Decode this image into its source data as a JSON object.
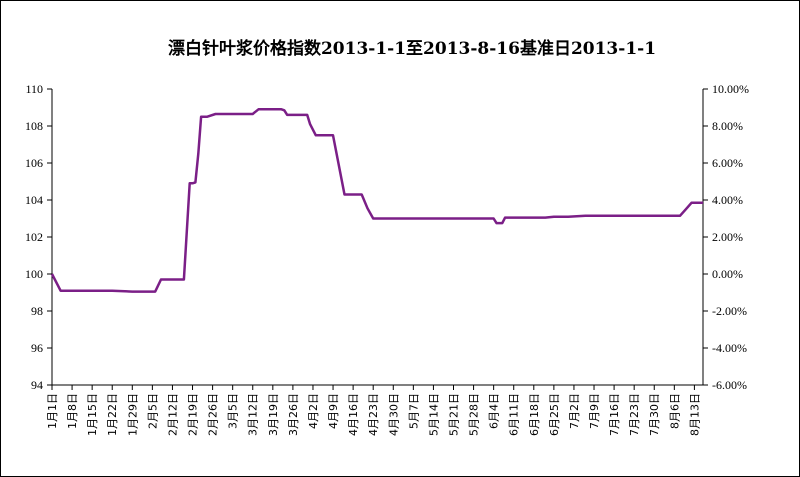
{
  "chart_data": {
    "type": "line",
    "title": "漂白针叶浆价格指数2013-1-1至2013-8-16基准日2013-1-1",
    "xlabel": "",
    "ylabel": "",
    "ylim": [
      94,
      110
    ],
    "y_ticks": [
      "110",
      "108",
      "106",
      "104",
      "102",
      "100",
      "98",
      "96",
      "94"
    ],
    "y2lim": [
      -0.06,
      0.1
    ],
    "y2_ticks": [
      "10.00%",
      "8.00%",
      "6.00%",
      "4.00%",
      "2.00%",
      "0.00%",
      "-2.00%",
      "-4.00%",
      "-6.00%"
    ],
    "x_ticks": [
      "1月1日",
      "1月8日",
      "1月15日",
      "1月22日",
      "1月29日",
      "2月5日",
      "2月12日",
      "2月19日",
      "2月26日",
      "3月5日",
      "3月12日",
      "3月19日",
      "3月26日",
      "4月2日",
      "4月9日",
      "4月16日",
      "4月23日",
      "4月30日",
      "5月7日",
      "5月14日",
      "5月21日",
      "5月28日",
      "6月4日",
      "6月11日",
      "6月18日",
      "6月25日",
      "7月2日",
      "7月9日",
      "7月16日",
      "7月23日",
      "7月30日",
      "8月6日",
      "8月13日"
    ],
    "grid": false,
    "legend": "none",
    "color": "#7b1f87",
    "series": [
      {
        "x": [
          0,
          3,
          12,
          14,
          21,
          28,
          35,
          36,
          38,
          40,
          46,
          48,
          49,
          50,
          51,
          52,
          54,
          57,
          60,
          64,
          70,
          72,
          74,
          78,
          80,
          81,
          82,
          84,
          86,
          89,
          90,
          92,
          94,
          96,
          97,
          98,
          102,
          105,
          108,
          110,
          112,
          114,
          116,
          118,
          122,
          126,
          130,
          134,
          138,
          140,
          144,
          154,
          155,
          157,
          158,
          160,
          167,
          172,
          175,
          180,
          186,
          190,
          200,
          207,
          214,
          219,
          221,
          223,
          227
        ],
        "values": [
          100,
          99.1,
          99.1,
          99.1,
          99.1,
          99.05,
          99.05,
          99.05,
          99.7,
          99.7,
          99.7,
          104.9,
          104.9,
          104.95,
          106.5,
          108.5,
          108.5,
          108.65,
          108.65,
          108.65,
          108.65,
          108.9,
          108.9,
          108.9,
          108.9,
          108.85,
          108.6,
          108.6,
          108.6,
          108.6,
          108.1,
          107.5,
          107.5,
          107.5,
          107.5,
          107.5,
          104.3,
          104.3,
          104.3,
          103.55,
          103.0,
          103.0,
          103.0,
          103.0,
          103.0,
          103.0,
          103.0,
          103.0,
          103.0,
          103.0,
          103.0,
          103.0,
          102.75,
          102.75,
          103.05,
          103.05,
          103.05,
          103.05,
          103.1,
          103.1,
          103.15,
          103.15,
          103.15,
          103.15,
          103.15,
          103.15,
          103.5,
          103.85,
          103.85
        ]
      }
    ]
  }
}
